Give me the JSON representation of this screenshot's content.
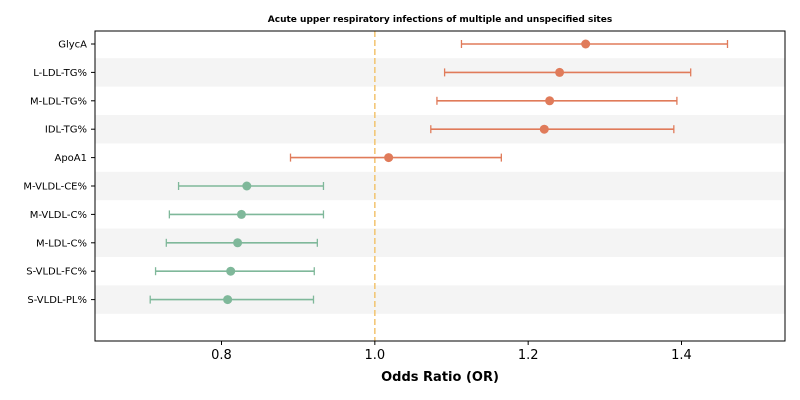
{
  "chart_data": {
    "type": "forest",
    "title": "Acute upper respiratory infections of multiple and unspecified sites",
    "xlabel": "Odds Ratio (OR)",
    "ylabel": "",
    "xlim": [
      0.635,
      1.535
    ],
    "xticks": [
      0.8,
      1.0,
      1.2,
      1.4
    ],
    "xtick_labels": [
      "0.8",
      "1.0",
      "1.2",
      "1.4"
    ],
    "reference_line": 1.0,
    "grid": false,
    "colors": {
      "risk": "#e07b5a",
      "protective": "#7fb89a",
      "reference": "#f2c46f",
      "band": "#f4f4f4"
    },
    "rows": [
      {
        "label": "GlycA",
        "or": 1.275,
        "lower": 1.113,
        "upper": 1.46,
        "group": "risk"
      },
      {
        "label": "L-LDL-TG%",
        "or": 1.241,
        "lower": 1.091,
        "upper": 1.412,
        "group": "risk"
      },
      {
        "label": "M-LDL-TG%",
        "or": 1.228,
        "lower": 1.081,
        "upper": 1.394,
        "group": "risk"
      },
      {
        "label": "IDL-TG%",
        "or": 1.221,
        "lower": 1.073,
        "upper": 1.39,
        "group": "risk"
      },
      {
        "label": "ApoA1",
        "or": 1.018,
        "lower": 0.89,
        "upper": 1.165,
        "group": "risk"
      },
      {
        "label": "M-VLDL-CE%",
        "or": 0.833,
        "lower": 0.744,
        "upper": 0.933,
        "group": "protective"
      },
      {
        "label": "M-VLDL-C%",
        "or": 0.826,
        "lower": 0.732,
        "upper": 0.933,
        "group": "protective"
      },
      {
        "label": "M-LDL-C%",
        "or": 0.821,
        "lower": 0.728,
        "upper": 0.925,
        "group": "protective"
      },
      {
        "label": "S-VLDL-FC%",
        "or": 0.812,
        "lower": 0.714,
        "upper": 0.921,
        "group": "protective"
      },
      {
        "label": "S-VLDL-PL%",
        "or": 0.808,
        "lower": 0.707,
        "upper": 0.92,
        "group": "protective"
      }
    ]
  }
}
